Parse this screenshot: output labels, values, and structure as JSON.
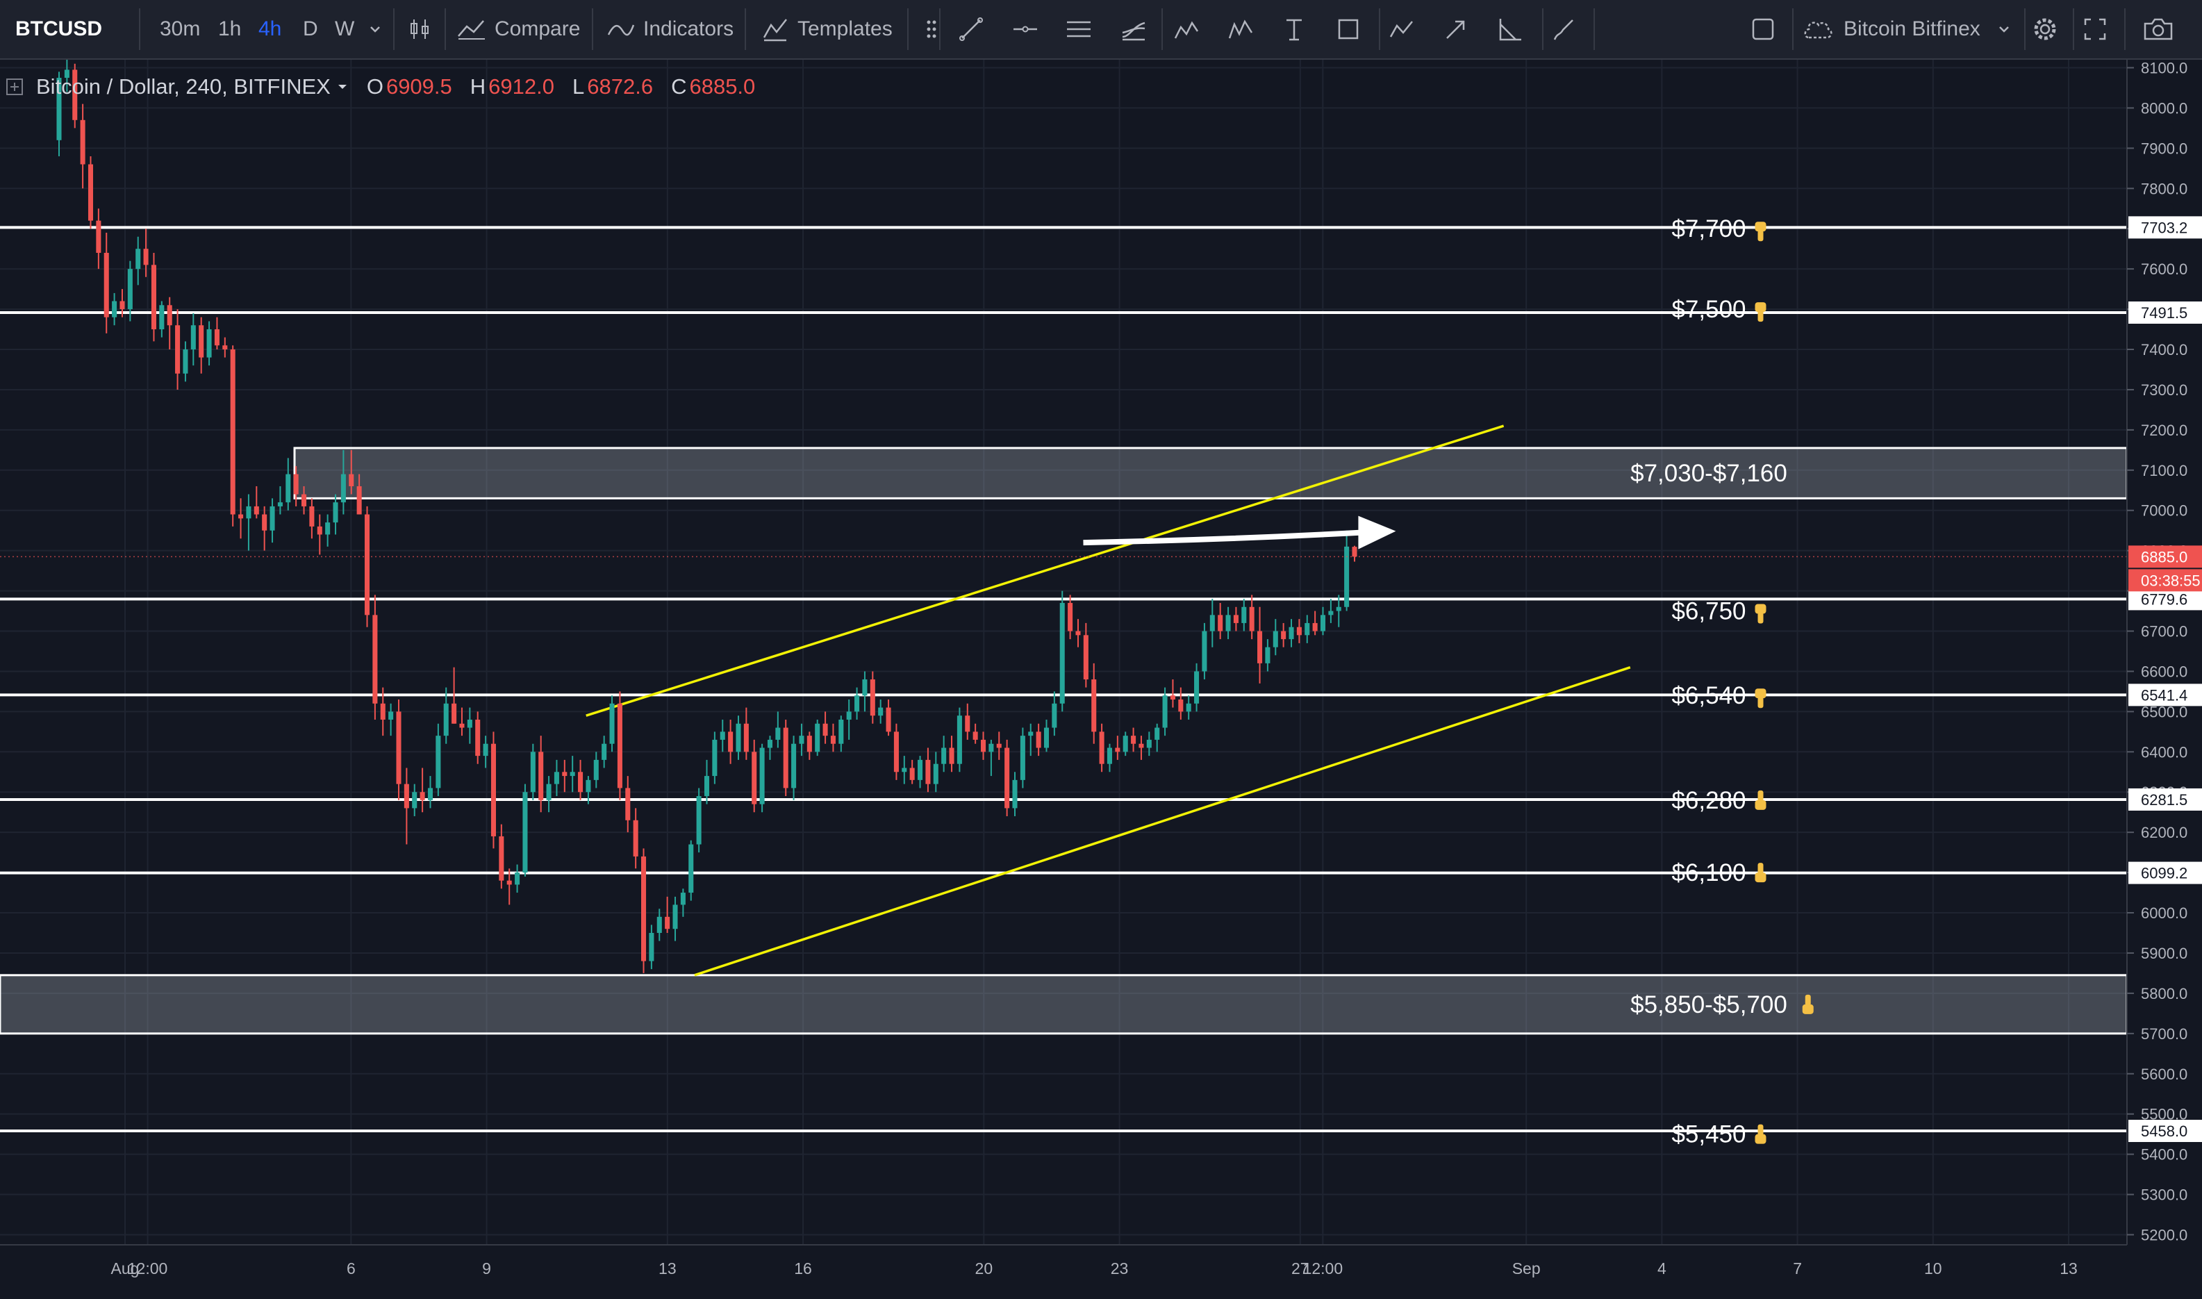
{
  "toolbar": {
    "symbol": "BTCUSD",
    "intervals": [
      "30m",
      "1h",
      "4h",
      "D",
      "W"
    ],
    "active_interval": "4h",
    "compare_label": "Compare",
    "indicators_label": "Indicators",
    "templates_label": "Templates",
    "drawing_tools": [
      "trend-line-icon",
      "horizontal-ray-icon",
      "parallel-channel-icon",
      "pitchfork-icon",
      "xabcd-pattern-icon",
      "elliott-wave-icon",
      "text-tool-icon",
      "rectangle-icon",
      "abcd-pattern-icon",
      "arrow-tool-icon",
      "measure-icon",
      "brush-icon"
    ],
    "layout_name": "Bitcoin Bitfinex"
  },
  "legend": {
    "title": "Bitcoin / Dollar, 240, BITFINEX",
    "open_label": "O",
    "open": "6909.5",
    "high_label": "H",
    "high": "6912.0",
    "low_label": "L",
    "low": "6872.6",
    "close_label": "C",
    "close": "6885.0"
  },
  "colors": {
    "background": "#131722",
    "up": "#26a69a",
    "down": "#ef5350",
    "channel": "#f2f205",
    "level": "#ffffff",
    "price_tag": "#ef5350"
  },
  "chart_data": {
    "type": "candlestick",
    "ylim": [
      5200,
      8100
    ],
    "y_ticks": [
      8100,
      8000,
      7900,
      7800,
      7700,
      7600,
      7500,
      7400,
      7300,
      7200,
      7100,
      7000,
      6900,
      6800,
      6700,
      6600,
      6500,
      6400,
      6300,
      6200,
      6100,
      6000,
      5900,
      5800,
      5700,
      5600,
      5500,
      5400,
      5300,
      5200
    ],
    "x_ticks": [
      {
        "label": "Aug",
        "day": 1
      },
      {
        "label": "12:00",
        "day": 1.5
      },
      {
        "label": "6",
        "day": 6
      },
      {
        "label": "9",
        "day": 9
      },
      {
        "label": "13",
        "day": 13
      },
      {
        "label": "16",
        "day": 16
      },
      {
        "label": "20",
        "day": 20
      },
      {
        "label": "23",
        "day": 23
      },
      {
        "label": "27",
        "day": 27
      },
      {
        "label": "12:00",
        "day": 27.5
      },
      {
        "label": "Sep",
        "day": 32
      },
      {
        "label": "4",
        "day": 35
      },
      {
        "label": "7",
        "day": 38
      },
      {
        "label": "10",
        "day": 41
      },
      {
        "label": "13",
        "day": 44
      }
    ],
    "levels": [
      {
        "price": 7703.2,
        "tag": "7703.2",
        "label": "$7,700",
        "arrow": "down"
      },
      {
        "price": 7491.5,
        "tag": "7491.5",
        "label": "$7,500",
        "arrow": "down"
      },
      {
        "price": 6779.6,
        "tag": "6779.6",
        "label": "$6,750",
        "arrow": "down"
      },
      {
        "price": 6541.4,
        "tag": "6541.4",
        "label": "$6,540",
        "arrow": "down"
      },
      {
        "price": 6281.5,
        "tag": "6281.5",
        "label": "$6,280",
        "arrow": "up"
      },
      {
        "price": 6099.2,
        "tag": "6099.2",
        "label": "$6,100",
        "arrow": "up"
      },
      {
        "price": 5458.0,
        "tag": "5458.0",
        "label": "$5,450",
        "arrow": "up"
      }
    ],
    "zones": [
      {
        "from": 7030,
        "to": 7155,
        "start_day": 4.75,
        "label": "$7,030-$7,160",
        "arrow": "none"
      },
      {
        "from": 5700,
        "to": 5845,
        "start_day": null,
        "label": "$5,850-$5,700",
        "arrow": "up"
      }
    ],
    "channel": {
      "upper": [
        {
          "day": 11.2,
          "price": 6490
        },
        {
          "day": 31.5,
          "price": 7210
        }
      ],
      "lower": [
        {
          "day": 13.6,
          "price": 5845
        },
        {
          "day": 34.3,
          "price": 6610
        }
      ]
    },
    "arrow": {
      "from": {
        "day": 22.2,
        "price": 6920
      },
      "to": {
        "day": 28.5,
        "price": 6945
      }
    },
    "last_price": {
      "tag": "6885.0",
      "countdown": "03:38:55",
      "price": 6885
    },
    "candles": [
      [
        7920,
        8090,
        7880,
        8075
      ],
      [
        8075,
        8120,
        8040,
        8095
      ],
      [
        8095,
        8110,
        7950,
        7970
      ],
      [
        7970,
        8010,
        7800,
        7860
      ],
      [
        7860,
        7880,
        7700,
        7720
      ],
      [
        7720,
        7750,
        7600,
        7640
      ],
      [
        7640,
        7690,
        7440,
        7480
      ],
      [
        7480,
        7540,
        7460,
        7520
      ],
      [
        7520,
        7550,
        7480,
        7500
      ],
      [
        7500,
        7620,
        7470,
        7600
      ],
      [
        7600,
        7680,
        7560,
        7650
      ],
      [
        7650,
        7700,
        7580,
        7610
      ],
      [
        7610,
        7640,
        7420,
        7450
      ],
      [
        7450,
        7520,
        7430,
        7510
      ],
      [
        7510,
        7530,
        7400,
        7460
      ],
      [
        7460,
        7500,
        7300,
        7340
      ],
      [
        7340,
        7420,
        7320,
        7400
      ],
      [
        7400,
        7490,
        7360,
        7460
      ],
      [
        7460,
        7480,
        7340,
        7380
      ],
      [
        7380,
        7470,
        7360,
        7450
      ],
      [
        7450,
        7480,
        7400,
        7410
      ],
      [
        7410,
        7430,
        7380,
        7400
      ],
      [
        7400,
        7410,
        6960,
        6990
      ],
      [
        6990,
        7030,
        6930,
        6980
      ],
      [
        6980,
        7040,
        6900,
        7010
      ],
      [
        7010,
        7060,
        6980,
        6990
      ],
      [
        6990,
        7010,
        6900,
        6950
      ],
      [
        6950,
        7030,
        6920,
        7010
      ],
      [
        7010,
        7060,
        6990,
        7020
      ],
      [
        7020,
        7130,
        7000,
        7090
      ],
      [
        7090,
        7110,
        7010,
        7040
      ],
      [
        7040,
        7060,
        6990,
        7010
      ],
      [
        7010,
        7030,
        6930,
        6960
      ],
      [
        6960,
        6990,
        6890,
        6940
      ],
      [
        6940,
        6990,
        6910,
        6970
      ],
      [
        6970,
        7040,
        6940,
        7020
      ],
      [
        7020,
        7150,
        6990,
        7090
      ],
      [
        7090,
        7150,
        7040,
        7060
      ],
      [
        7060,
        7090,
        6990,
        6990
      ],
      [
        6990,
        7010,
        6710,
        6740
      ],
      [
        6740,
        6790,
        6480,
        6520
      ],
      [
        6520,
        6560,
        6440,
        6480
      ],
      [
        6480,
        6520,
        6440,
        6500
      ],
      [
        6500,
        6530,
        6280,
        6320
      ],
      [
        6320,
        6360,
        6170,
        6260
      ],
      [
        6260,
        6320,
        6240,
        6300
      ],
      [
        6300,
        6360,
        6250,
        6280
      ],
      [
        6280,
        6340,
        6260,
        6310
      ],
      [
        6310,
        6470,
        6290,
        6440
      ],
      [
        6440,
        6560,
        6420,
        6520
      ],
      [
        6520,
        6610,
        6470,
        6470
      ],
      [
        6470,
        6510,
        6440,
        6460
      ],
      [
        6460,
        6510,
        6420,
        6480
      ],
      [
        6480,
        6500,
        6370,
        6390
      ],
      [
        6390,
        6440,
        6360,
        6420
      ],
      [
        6420,
        6450,
        6160,
        6190
      ],
      [
        6190,
        6220,
        6060,
        6080
      ],
      [
        6080,
        6110,
        6020,
        6070
      ],
      [
        6070,
        6120,
        6050,
        6100
      ],
      [
        6100,
        6320,
        6090,
        6300
      ],
      [
        6300,
        6420,
        6280,
        6400
      ],
      [
        6400,
        6440,
        6250,
        6280
      ],
      [
        6280,
        6340,
        6250,
        6320
      ],
      [
        6320,
        6380,
        6290,
        6350
      ],
      [
        6350,
        6380,
        6300,
        6340
      ],
      [
        6340,
        6390,
        6300,
        6350
      ],
      [
        6350,
        6380,
        6280,
        6300
      ],
      [
        6300,
        6340,
        6270,
        6330
      ],
      [
        6330,
        6400,
        6310,
        6380
      ],
      [
        6380,
        6440,
        6360,
        6420
      ],
      [
        6420,
        6540,
        6400,
        6520
      ],
      [
        6520,
        6550,
        6280,
        6310
      ],
      [
        6310,
        6340,
        6200,
        6230
      ],
      [
        6230,
        6260,
        6110,
        6140
      ],
      [
        6140,
        6160,
        5850,
        5880
      ],
      [
        5880,
        5970,
        5860,
        5950
      ],
      [
        5950,
        6010,
        5930,
        5990
      ],
      [
        5990,
        6040,
        5950,
        5960
      ],
      [
        5960,
        6040,
        5930,
        6020
      ],
      [
        6020,
        6060,
        5990,
        6050
      ],
      [
        6050,
        6180,
        6030,
        6170
      ],
      [
        6170,
        6310,
        6150,
        6290
      ],
      [
        6290,
        6380,
        6270,
        6340
      ],
      [
        6340,
        6450,
        6320,
        6430
      ],
      [
        6430,
        6480,
        6400,
        6450
      ],
      [
        6450,
        6480,
        6370,
        6400
      ],
      [
        6400,
        6490,
        6380,
        6470
      ],
      [
        6470,
        6510,
        6380,
        6400
      ],
      [
        6400,
        6430,
        6250,
        6270
      ],
      [
        6270,
        6420,
        6250,
        6410
      ],
      [
        6410,
        6440,
        6380,
        6430
      ],
      [
        6430,
        6500,
        6410,
        6460
      ],
      [
        6460,
        6480,
        6290,
        6310
      ],
      [
        6310,
        6440,
        6280,
        6420
      ],
      [
        6420,
        6470,
        6390,
        6440
      ],
      [
        6440,
        6450,
        6380,
        6400
      ],
      [
        6400,
        6480,
        6390,
        6470
      ],
      [
        6470,
        6500,
        6420,
        6440
      ],
      [
        6440,
        6470,
        6400,
        6420
      ],
      [
        6420,
        6490,
        6400,
        6480
      ],
      [
        6480,
        6530,
        6430,
        6500
      ],
      [
        6500,
        6560,
        6480,
        6540
      ],
      [
        6540,
        6600,
        6500,
        6580
      ],
      [
        6580,
        6600,
        6470,
        6490
      ],
      [
        6490,
        6530,
        6470,
        6510
      ],
      [
        6510,
        6530,
        6440,
        6450
      ],
      [
        6450,
        6470,
        6330,
        6350
      ],
      [
        6350,
        6390,
        6320,
        6360
      ],
      [
        6360,
        6380,
        6320,
        6330
      ],
      [
        6330,
        6390,
        6310,
        6380
      ],
      [
        6380,
        6410,
        6300,
        6320
      ],
      [
        6320,
        6400,
        6300,
        6370
      ],
      [
        6370,
        6440,
        6350,
        6410
      ],
      [
        6410,
        6440,
        6350,
        6370
      ],
      [
        6370,
        6510,
        6350,
        6490
      ],
      [
        6490,
        6520,
        6430,
        6450
      ],
      [
        6450,
        6470,
        6420,
        6430
      ],
      [
        6430,
        6450,
        6380,
        6400
      ],
      [
        6400,
        6430,
        6340,
        6420
      ],
      [
        6420,
        6450,
        6380,
        6410
      ],
      [
        6410,
        6430,
        6240,
        6260
      ],
      [
        6260,
        6350,
        6240,
        6330
      ],
      [
        6330,
        6460,
        6310,
        6440
      ],
      [
        6440,
        6470,
        6390,
        6450
      ],
      [
        6450,
        6470,
        6390,
        6410
      ],
      [
        6410,
        6480,
        6400,
        6460
      ],
      [
        6460,
        6550,
        6440,
        6520
      ],
      [
        6520,
        6800,
        6500,
        6770
      ],
      [
        6770,
        6790,
        6680,
        6700
      ],
      [
        6700,
        6730,
        6660,
        6690
      ],
      [
        6690,
        6720,
        6560,
        6580
      ],
      [
        6580,
        6620,
        6420,
        6450
      ],
      [
        6450,
        6470,
        6350,
        6370
      ],
      [
        6370,
        6420,
        6350,
        6410
      ],
      [
        6410,
        6440,
        6380,
        6400
      ],
      [
        6400,
        6450,
        6390,
        6440
      ],
      [
        6440,
        6460,
        6400,
        6420
      ],
      [
        6420,
        6440,
        6380,
        6410
      ],
      [
        6410,
        6450,
        6390,
        6430
      ],
      [
        6430,
        6470,
        6400,
        6460
      ],
      [
        6460,
        6560,
        6440,
        6540
      ],
      [
        6540,
        6580,
        6510,
        6530
      ],
      [
        6530,
        6560,
        6480,
        6500
      ],
      [
        6500,
        6540,
        6480,
        6520
      ],
      [
        6520,
        6620,
        6500,
        6600
      ],
      [
        6600,
        6720,
        6580,
        6700
      ],
      [
        6700,
        6780,
        6660,
        6740
      ],
      [
        6740,
        6770,
        6680,
        6700
      ],
      [
        6700,
        6760,
        6680,
        6740
      ],
      [
        6740,
        6760,
        6700,
        6720
      ],
      [
        6720,
        6780,
        6700,
        6760
      ],
      [
        6760,
        6790,
        6680,
        6700
      ],
      [
        6700,
        6760,
        6570,
        6620
      ],
      [
        6620,
        6680,
        6600,
        6660
      ],
      [
        6660,
        6730,
        6640,
        6700
      ],
      [
        6700,
        6720,
        6660,
        6680
      ],
      [
        6680,
        6730,
        6660,
        6710
      ],
      [
        6710,
        6730,
        6670,
        6690
      ],
      [
        6690,
        6740,
        6670,
        6720
      ],
      [
        6720,
        6750,
        6690,
        6700
      ],
      [
        6700,
        6760,
        6690,
        6740
      ],
      [
        6740,
        6780,
        6720,
        6750
      ],
      [
        6750,
        6790,
        6710,
        6760
      ],
      [
        6760,
        6950,
        6750,
        6910
      ],
      [
        6909.5,
        6912,
        6872.6,
        6885
      ]
    ]
  }
}
